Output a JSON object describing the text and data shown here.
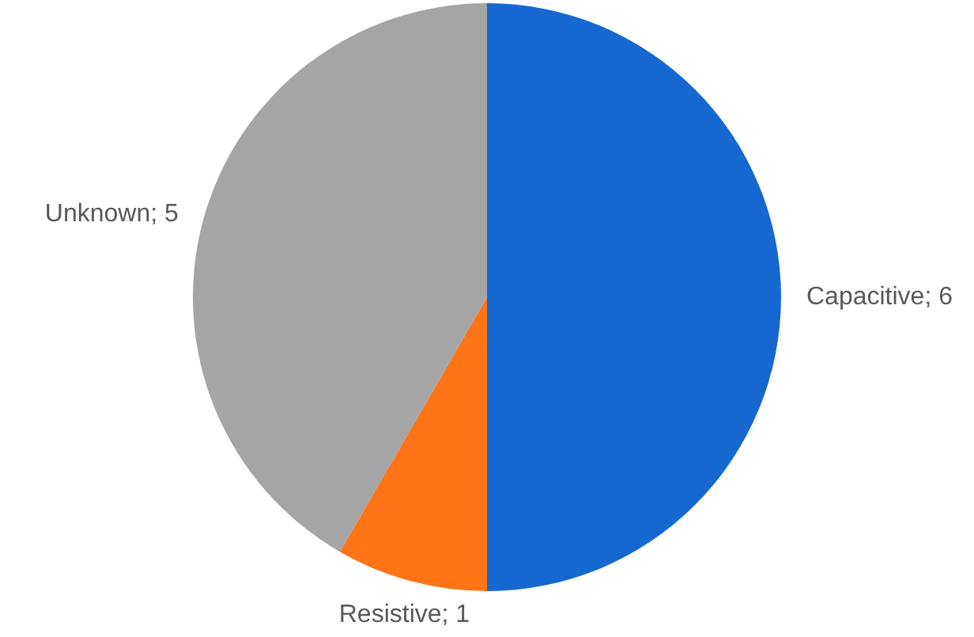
{
  "chart_data": {
    "type": "pie",
    "categories": [
      "Capacitive; 6",
      "Resistive; 1",
      "Unknown; 5"
    ],
    "values": [
      6,
      1,
      5
    ],
    "colors": [
      "#1668d0",
      "#ff7417",
      "#a5a5a5"
    ],
    "legend": false
  }
}
